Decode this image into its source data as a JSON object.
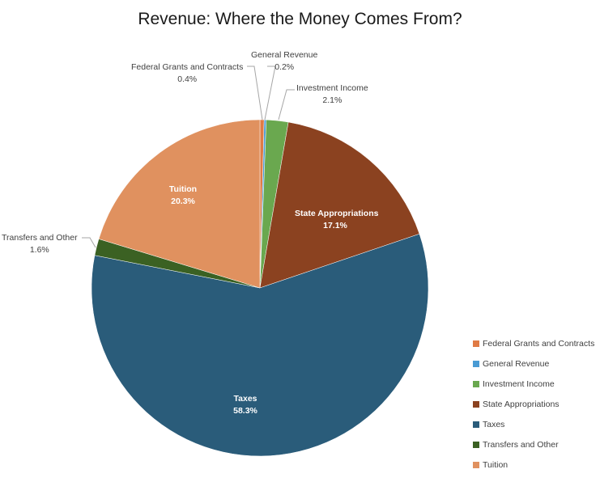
{
  "chart_data": {
    "type": "pie",
    "title": "Revenue: Where the Money Comes From?",
    "categories": [
      "Federal Grants and Contracts",
      "General Revenue",
      "Investment Income",
      "State Appropriations",
      "Taxes",
      "Transfers and Other",
      "Tuition"
    ],
    "values": [
      0.4,
      0.2,
      2.1,
      17.1,
      58.3,
      1.6,
      20.3
    ],
    "value_labels": [
      "0.4%",
      "0.2%",
      "2.1%",
      "17.1%",
      "58.3%",
      "1.6%",
      "20.3%"
    ],
    "colors": [
      "#E07B45",
      "#4A9BD4",
      "#6AA84F",
      "#8B4220",
      "#2A5C7A",
      "#3B6123",
      "#E0915F"
    ],
    "legend_position": "right"
  },
  "labels": {
    "federal": {
      "name": "Federal Grants and Contracts",
      "pct": "0.4%"
    },
    "general": {
      "name": "General Revenue",
      "pct": "0.2%"
    },
    "investment": {
      "name": "Investment Income",
      "pct": "2.1%"
    },
    "state": {
      "name": "State Appropriations",
      "pct": "17.1%"
    },
    "taxes": {
      "name": "Taxes",
      "pct": "58.3%"
    },
    "transfers": {
      "name": "Transfers and Other",
      "pct": "1.6%"
    },
    "tuition": {
      "name": "Tuition",
      "pct": "20.3%"
    }
  },
  "legend": [
    "Federal Grants and Contracts",
    "General Revenue",
    "Investment Income",
    "State Appropriations",
    "Taxes",
    "Transfers and Other",
    "Tuition"
  ]
}
